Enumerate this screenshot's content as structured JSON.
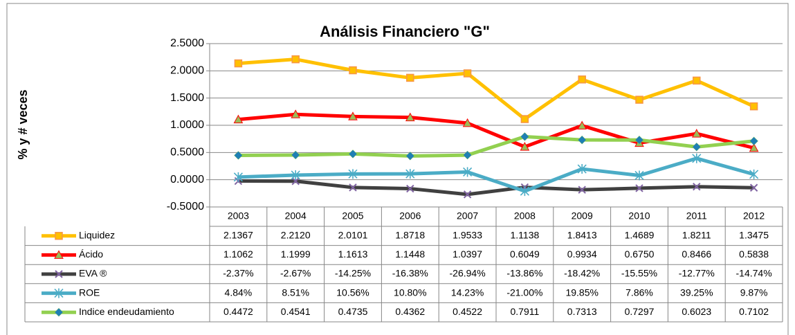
{
  "chart_data": {
    "type": "line",
    "title": "Análisis Financiero \"G\"",
    "y_label": "% y # veces",
    "categories": [
      "2003",
      "2004",
      "2005",
      "2006",
      "2007",
      "2008",
      "2009",
      "2010",
      "2011",
      "2012"
    ],
    "ylim": [
      -0.5,
      2.5
    ],
    "yticks": [
      {
        "value": -0.5,
        "label": "-0.5000"
      },
      {
        "value": 0,
        "label": "0.0000"
      },
      {
        "value": 0.5,
        "label": "0.5000"
      },
      {
        "value": 1,
        "label": "1.0000"
      },
      {
        "value": 1.5,
        "label": "1.5000"
      },
      {
        "value": 2,
        "label": "2.0000"
      },
      {
        "value": 2.5,
        "label": "2.5000"
      }
    ],
    "grid": true,
    "series": [
      {
        "name": "Liquidez",
        "color": "#ffc000",
        "marker": "square",
        "marker_color": "#f79646",
        "values": [
          2.1367,
          2.212,
          2.0101,
          1.8718,
          1.9533,
          1.1138,
          1.8413,
          1.4689,
          1.8211,
          1.3475
        ],
        "value_labels": [
          "2.1367",
          "2.2120",
          "2.0101",
          "1.8718",
          "1.9533",
          "1.1138",
          "1.8413",
          "1.4689",
          "1.8211",
          "1.3475"
        ]
      },
      {
        "name": "Ácido",
        "color": "#ff0000",
        "marker": "triangle",
        "marker_color": "#9bbb59",
        "values": [
          1.1062,
          1.1999,
          1.1613,
          1.1448,
          1.0397,
          0.6049,
          0.9934,
          0.675,
          0.8466,
          0.5838
        ],
        "value_labels": [
          "1.1062",
          "1.1999",
          "1.1613",
          "1.1448",
          "1.0397",
          "0.6049",
          "0.9934",
          "0.6750",
          "0.8466",
          "0.5838"
        ]
      },
      {
        "name": "EVA ®",
        "color": "#404040",
        "marker": "x",
        "marker_color": "#8064a2",
        "values": [
          -0.0237,
          -0.0267,
          -0.1425,
          -0.1638,
          -0.2694,
          -0.1386,
          -0.1842,
          -0.1555,
          -0.1277,
          -0.1474
        ],
        "value_labels": [
          "-2.37%",
          "-2.67%",
          "-14.25%",
          "-16.38%",
          "-26.94%",
          "-13.86%",
          "-18.42%",
          "-15.55%",
          "-12.77%",
          "-14.74%"
        ]
      },
      {
        "name": "ROE",
        "color": "#4bacc6",
        "marker": "star",
        "marker_color": "#4bacc6",
        "values": [
          0.0484,
          0.0851,
          0.1056,
          0.108,
          0.1423,
          -0.21,
          0.1985,
          0.0786,
          0.3925,
          0.0987
        ],
        "value_labels": [
          "4.84%",
          "8.51%",
          "10.56%",
          "10.80%",
          "14.23%",
          "-21.00%",
          "19.85%",
          "7.86%",
          "39.25%",
          "9.87%"
        ]
      },
      {
        "name": "Indice endeudamiento",
        "color": "#92d050",
        "marker": "diamond",
        "marker_color": "#1f7fb4",
        "values": [
          0.4472,
          0.4541,
          0.4735,
          0.4362,
          0.4522,
          0.7911,
          0.7313,
          0.7297,
          0.6023,
          0.7102
        ],
        "value_labels": [
          "0.4472",
          "0.4541",
          "0.4735",
          "0.4362",
          "0.4522",
          "0.7911",
          "0.7313",
          "0.7297",
          "0.6023",
          "0.7102"
        ]
      }
    ]
  }
}
